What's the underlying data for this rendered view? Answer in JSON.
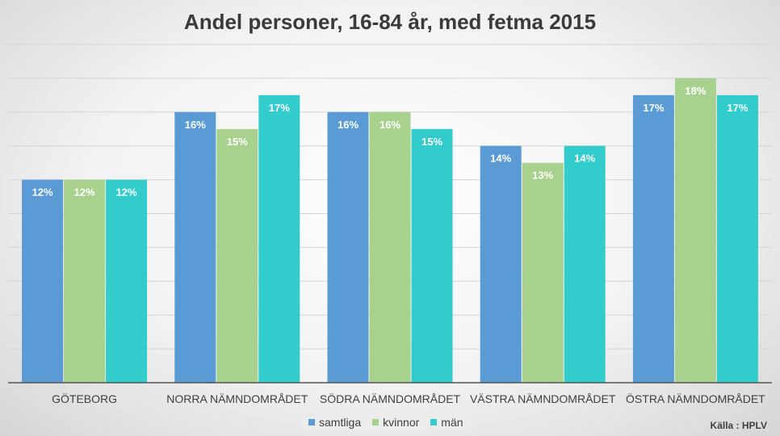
{
  "chart_data": {
    "type": "bar",
    "title": "Andel personer, 16-84 år, med fetma 2015",
    "categories": [
      "GÖTEBORG",
      "NORRA NÄMNDOMRÅDET",
      "SÖDRA NÄMNDOMRÅDET",
      "VÄSTRA NÄMNDOMRÅDET",
      "ÖSTRA NÄMNDOMRÅDET"
    ],
    "series": [
      {
        "name": "samtliga",
        "color": "#5b9bd5",
        "values": [
          12,
          16,
          16,
          14,
          17
        ],
        "labels": [
          "12%",
          "16%",
          "16%",
          "14%",
          "17%"
        ]
      },
      {
        "name": "kvinnor",
        "color": "#a9d18e",
        "values": [
          12,
          15,
          16,
          13,
          18
        ],
        "labels": [
          "12%",
          "15%",
          "16%",
          "13%",
          "18%"
        ]
      },
      {
        "name": "män",
        "color": "#33cccc",
        "values": [
          12,
          17,
          15,
          14,
          17
        ],
        "labels": [
          "12%",
          "17%",
          "15%",
          "14%",
          "17%"
        ]
      }
    ],
    "xlabel": "",
    "ylabel": "",
    "ylim": [
      0,
      20
    ],
    "grid": true,
    "legend_position": "bottom"
  },
  "source": "Källa : HPLV"
}
